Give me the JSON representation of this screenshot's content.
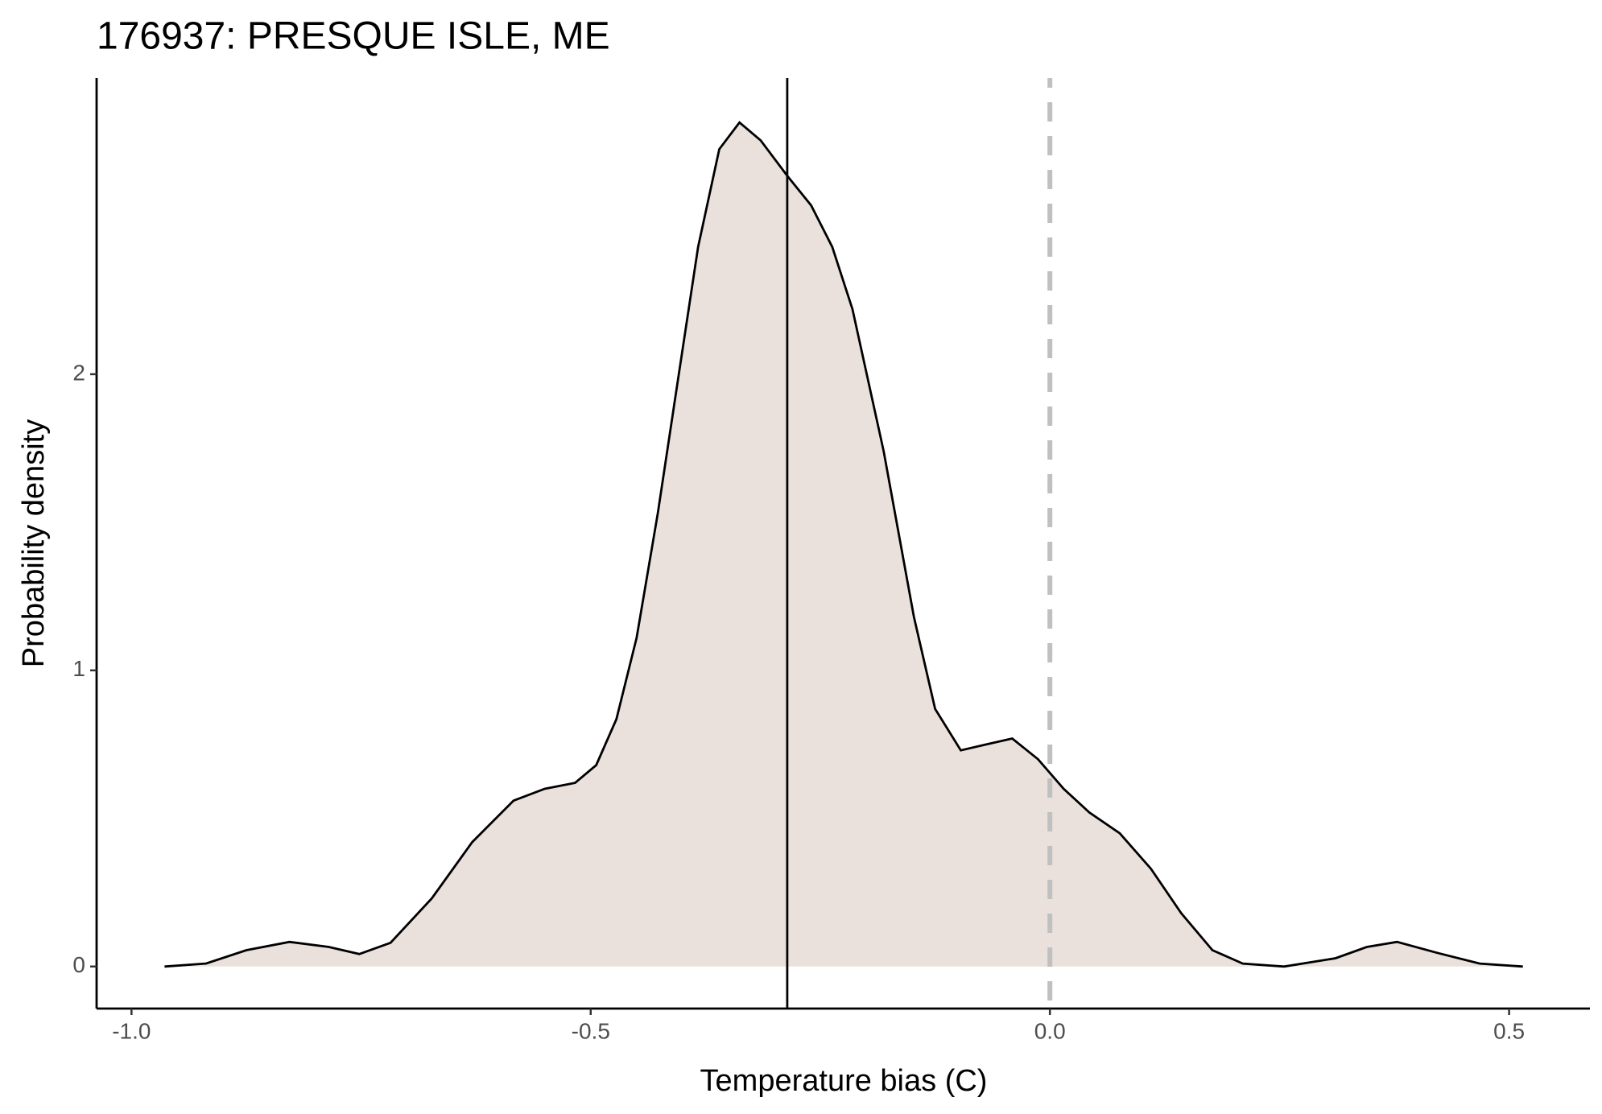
{
  "chart_data": {
    "type": "density",
    "title": "176937: PRESQUE ISLE, ME",
    "xlabel": "Temperature bias (C)",
    "ylabel": "Probability density",
    "x": [
      -0.964,
      -0.919,
      -0.875,
      -0.828,
      -0.785,
      -0.752,
      -0.718,
      -0.673,
      -0.629,
      -0.584,
      -0.55,
      -0.517,
      -0.494,
      -0.472,
      -0.45,
      -0.427,
      -0.405,
      -0.383,
      -0.36,
      -0.338,
      -0.315,
      -0.286,
      -0.26,
      -0.237,
      -0.215,
      -0.181,
      -0.148,
      -0.125,
      -0.097,
      -0.069,
      -0.041,
      -0.013,
      0.015,
      0.043,
      0.076,
      0.11,
      0.143,
      0.177,
      0.21,
      0.255,
      0.311,
      0.345,
      0.378,
      0.423,
      0.468,
      0.515
    ],
    "values": [
      0,
      0.01,
      0.055,
      0.083,
      0.066,
      0.042,
      0.08,
      0.23,
      0.42,
      0.56,
      0.6,
      0.62,
      0.68,
      0.835,
      1.11,
      1.53,
      1.98,
      2.43,
      2.76,
      2.85,
      2.79,
      2.67,
      2.57,
      2.43,
      2.22,
      1.74,
      1.18,
      0.87,
      0.73,
      0.75,
      0.77,
      0.7,
      0.6,
      0.52,
      0.45,
      0.33,
      0.18,
      0.055,
      0.01,
      0,
      0.028,
      0.066,
      0.083,
      0.045,
      0.01,
      0
    ],
    "color": "#000000",
    "fill": "#ebe1dc",
    "mean_line": -0.286,
    "mean_line_color": "#000000",
    "reference_line": 0,
    "reference_line_color": "#c0c0c0",
    "xlim": [
      -1.038,
      0.588
    ],
    "ylim": [
      -0.142,
      3.0
    ],
    "xticks": [
      {
        "value": -1.0,
        "label": "-1.0"
      },
      {
        "value": -0.5,
        "label": "-0.5"
      },
      {
        "value": 0.0,
        "label": "0.0"
      },
      {
        "value": 0.5,
        "label": "0.5"
      }
    ],
    "yticks": [
      0,
      1,
      2
    ],
    "grid": false
  }
}
